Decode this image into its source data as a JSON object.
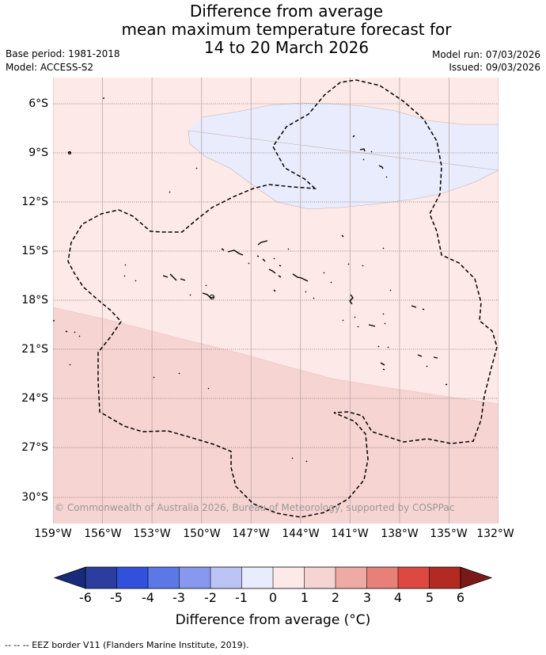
{
  "title": {
    "line1": "Difference from average",
    "line2": "mean maximum temperature forecast for",
    "line3": "14 to 20 March 2026"
  },
  "info": {
    "base_period": "Base period: 1981-2018",
    "model": "Model: ACCESS-S2",
    "model_run": "Model run: 07/03/2026",
    "issued": "Issued: 09/03/2026"
  },
  "axes": {
    "latitudes": [
      "6°S",
      "9°S",
      "12°S",
      "15°S",
      "18°S",
      "21°S",
      "24°S",
      "27°S",
      "30°S"
    ],
    "longitudes": [
      "159°W",
      "156°W",
      "153°W",
      "150°W",
      "147°W",
      "144°W",
      "141°W",
      "138°W",
      "135°W",
      "132°W"
    ]
  },
  "legend": {
    "ticks": [
      "-6",
      "-5",
      "-4",
      "-3",
      "-2",
      "-1",
      "0",
      "1",
      "2",
      "3",
      "4",
      "5",
      "6"
    ],
    "colors": [
      "#2b3ea0",
      "#3150dc",
      "#5b78e6",
      "#8898ee",
      "#bcc4f5",
      "#e8ecfc",
      "#fdeae8",
      "#f6d4d2",
      "#f0aaa6",
      "#e8807a",
      "#dd4840",
      "#b32a22"
    ],
    "under_color": "#182a7a",
    "over_color": "#7a1a18",
    "title": "Difference from average (°C)"
  },
  "map": {
    "colors": {
      "region_0_to_1": "#fdeae8",
      "region_1_to_2": "#f6d4d2",
      "region_minus1_to_0": "#e8ecfc"
    },
    "copyright": "© Commonwealth of Australia 2026, Bureau of Meteorology, supported by COSPPac"
  },
  "footnote": "--  --  -- EEZ border V11 (Flanders Marine Institute, 2019)."
}
